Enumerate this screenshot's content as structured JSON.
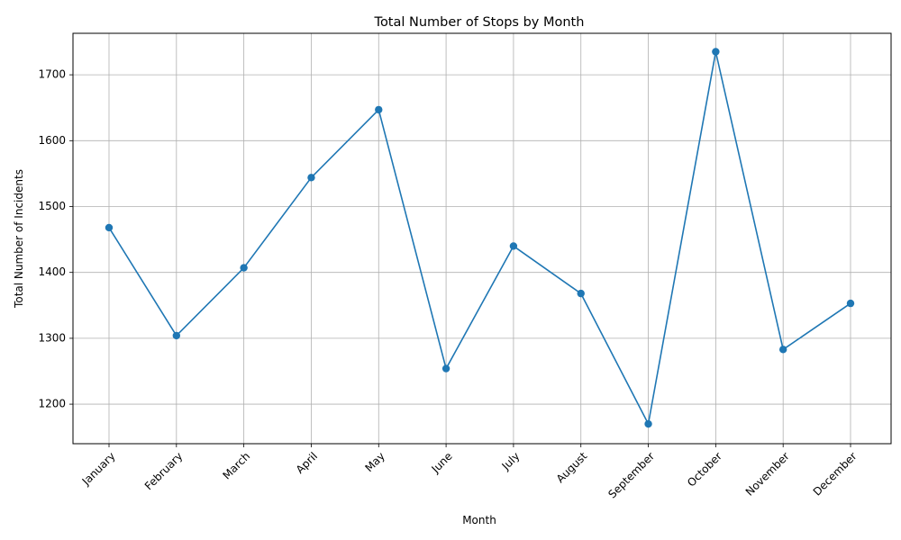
{
  "chart_data": {
    "type": "line",
    "title": "Total Number of Stops by Month",
    "xlabel": "Month",
    "ylabel": "Total Number of Incidents",
    "categories": [
      "January",
      "February",
      "March",
      "April",
      "May",
      "June",
      "July",
      "August",
      "September",
      "October",
      "November",
      "December"
    ],
    "series": [
      {
        "values": [
          1468,
          1304,
          1407,
          1544,
          1647,
          1254,
          1440,
          1368,
          1170,
          1735,
          1283,
          1353
        ],
        "color": "#1f77b4",
        "marker": "circle"
      }
    ],
    "ylim": [
      1140,
      1763
    ],
    "yticks": [
      1200,
      1300,
      1400,
      1500,
      1600,
      1700
    ],
    "grid": true,
    "legend": false
  }
}
